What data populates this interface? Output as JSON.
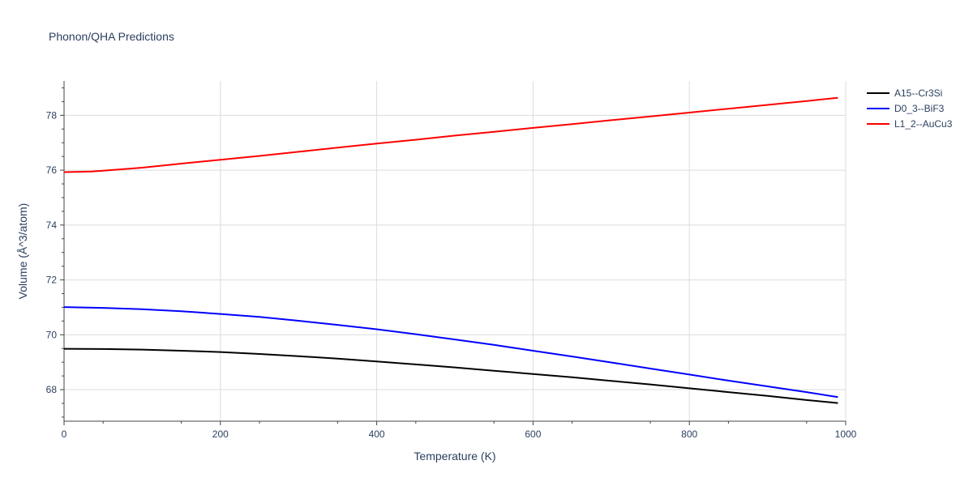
{
  "chart_data": {
    "type": "line",
    "title": "Phonon/QHA Predictions",
    "xlabel": "Temperature (K)",
    "ylabel": "Volume (Å^3/atom)",
    "xlim": [
      0,
      1000
    ],
    "ylim": [
      66.85,
      79.25
    ],
    "xticks": [
      0,
      200,
      400,
      600,
      800,
      1000
    ],
    "yticks": [
      68,
      70,
      72,
      74,
      76,
      78
    ],
    "grid": true,
    "legend_position": "top-right",
    "series": [
      {
        "name": "A15--Cr3Si",
        "color": "#000000",
        "x": [
          0,
          50,
          100,
          150,
          200,
          250,
          300,
          350,
          400,
          450,
          500,
          550,
          600,
          650,
          700,
          750,
          800,
          850,
          900,
          950,
          990
        ],
        "y": [
          69.49,
          69.48,
          69.46,
          69.42,
          69.37,
          69.3,
          69.22,
          69.13,
          69.03,
          68.92,
          68.81,
          68.69,
          68.57,
          68.45,
          68.32,
          68.19,
          68.05,
          67.91,
          67.77,
          67.62,
          67.51
        ]
      },
      {
        "name": "D0_3--BiF3",
        "color": "#0000ff",
        "x": [
          0,
          50,
          100,
          150,
          200,
          250,
          300,
          350,
          400,
          450,
          500,
          550,
          600,
          650,
          700,
          750,
          800,
          850,
          900,
          950,
          990
        ],
        "y": [
          71.01,
          70.98,
          70.93,
          70.86,
          70.76,
          70.65,
          70.51,
          70.36,
          70.2,
          70.02,
          69.83,
          69.63,
          69.42,
          69.21,
          68.99,
          68.77,
          68.55,
          68.33,
          68.12,
          67.91,
          67.73
        ]
      },
      {
        "name": "L1_2--AuCu3",
        "color": "#ff0000",
        "x": [
          0,
          35,
          50,
          100,
          150,
          200,
          250,
          300,
          350,
          400,
          450,
          500,
          550,
          600,
          650,
          700,
          750,
          800,
          850,
          900,
          950,
          990
        ],
        "y": [
          75.93,
          75.95,
          75.98,
          76.09,
          76.24,
          76.38,
          76.52,
          76.67,
          76.82,
          76.97,
          77.11,
          77.26,
          77.4,
          77.54,
          77.68,
          77.82,
          77.96,
          78.1,
          78.24,
          78.38,
          78.52,
          78.64
        ]
      }
    ]
  }
}
